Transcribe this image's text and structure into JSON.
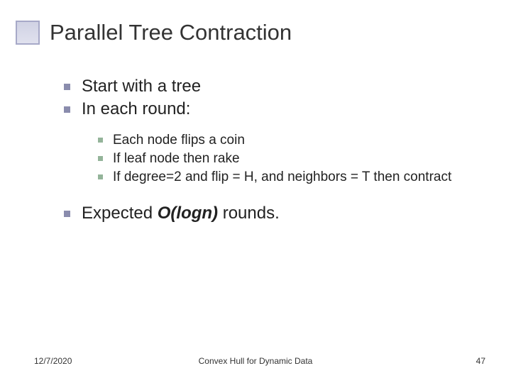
{
  "title": "Parallel Tree Contraction",
  "bullets_l1": [
    "Start with a tree",
    "In each round:"
  ],
  "bullets_l2": [
    "Each node flips a coin",
    "If leaf node then rake",
    "If degree=2 and flip = H, and neighbors = T then contract"
  ],
  "expected_pre": "Expected ",
  "expected_italic": "O(logn)",
  "expected_post": " rounds.",
  "footer": {
    "date": "12/7/2020",
    "center": "Convex Hull for Dynamic Data",
    "page": "47"
  },
  "colors": {
    "title_box_border": "#a7a9c8",
    "bullet_l1": "#8a8cad",
    "bullet_l2": "#94b49a",
    "text": "#222222",
    "background": "#ffffff"
  }
}
